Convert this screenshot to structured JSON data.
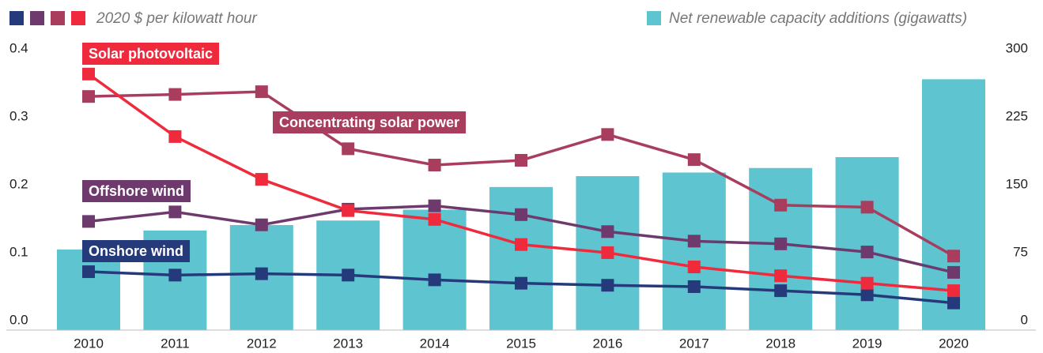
{
  "chart_data": {
    "type": "bar-line",
    "ylabel": "2020 $ per kilowatt hour",
    "categories": [
      "2010",
      "2011",
      "2012",
      "2013",
      "2014",
      "2015",
      "2016",
      "2017",
      "2018",
      "2019",
      "2020"
    ],
    "series": [
      {
        "name": "Net renewable capacity additions (gigawatts)",
        "type": "bar",
        "axis": "y2",
        "color": "#5ec4cf",
        "values": [
          89,
          110,
          116,
          121,
          133,
          158,
          170,
          174,
          179,
          191,
          277
        ]
      },
      {
        "name": "Onshore wind",
        "type": "line",
        "axis": "y",
        "color": "#253a7a",
        "values": [
          0.086,
          0.081,
          0.083,
          0.081,
          0.074,
          0.069,
          0.066,
          0.064,
          0.058,
          0.052,
          0.04
        ]
      },
      {
        "name": "Offshore wind",
        "type": "line",
        "axis": "y",
        "color": "#6e3a6e",
        "values": [
          0.16,
          0.174,
          0.155,
          0.178,
          0.183,
          0.17,
          0.145,
          0.131,
          0.127,
          0.115,
          0.085
        ]
      },
      {
        "name": "Concentrating solar power",
        "type": "line",
        "axis": "y",
        "color": "#a83d5e",
        "values": [
          0.344,
          0.347,
          0.351,
          0.267,
          0.243,
          0.25,
          0.288,
          0.251,
          0.184,
          0.181,
          0.109
        ]
      },
      {
        "name": "Solar photovoltaic",
        "type": "line",
        "axis": "y",
        "color": "#ef2a3c",
        "values": [
          0.377,
          0.285,
          0.222,
          0.176,
          0.163,
          0.126,
          0.114,
          0.093,
          0.08,
          0.069,
          0.058
        ]
      }
    ],
    "ylim": [
      0,
      0.4
    ],
    "yticks": [
      {
        "value": 0,
        "label": "0.0"
      },
      0.1,
      0.2,
      0.3,
      0.4
    ],
    "y2lim": [
      0,
      300
    ],
    "y2ticks": [
      0,
      75,
      150,
      225,
      300
    ],
    "grid": false
  }
}
